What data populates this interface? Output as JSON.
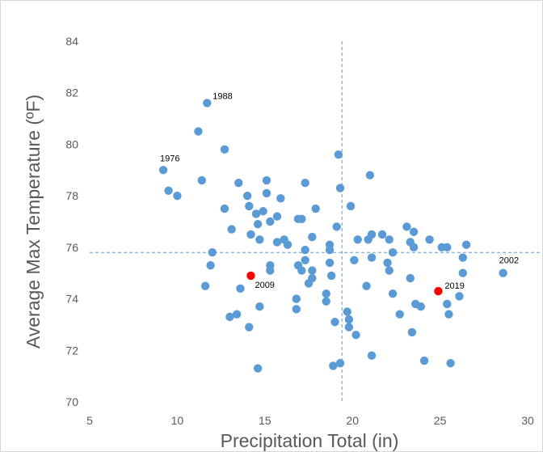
{
  "chart_data": {
    "type": "scatter",
    "xlabel": "Precipitation Total (in)",
    "ylabel": "Average Max Temperature (ºF)",
    "xlim": [
      5,
      30
    ],
    "ylim": [
      70,
      84
    ],
    "x_ticks": [
      5,
      10,
      15,
      20,
      25,
      30
    ],
    "y_ticks": [
      70,
      72,
      74,
      76,
      78,
      80,
      82,
      84
    ],
    "grid": false,
    "reference_lines": {
      "x": 19.4,
      "y": 75.8
    },
    "colors": {
      "points": "#5b9bd5",
      "highlight": "#ff0000",
      "reference_line": "#5b9bd5"
    },
    "series": [
      {
        "values": [
          [
            11.7,
            81.6
          ],
          [
            11.2,
            80.5
          ],
          [
            9.2,
            79.0
          ],
          [
            9.5,
            78.2
          ],
          [
            10.0,
            78.0
          ],
          [
            12.7,
            79.8
          ],
          [
            11.4,
            78.6
          ],
          [
            12.7,
            77.5
          ],
          [
            13.1,
            76.7
          ],
          [
            12.0,
            75.8
          ],
          [
            11.9,
            75.3
          ],
          [
            11.6,
            74.5
          ],
          [
            13.6,
            74.4
          ],
          [
            13.4,
            73.4
          ],
          [
            13.0,
            73.3
          ],
          [
            14.1,
            72.9
          ],
          [
            14.6,
            71.3
          ],
          [
            14.7,
            73.7
          ],
          [
            14.0,
            78.0
          ],
          [
            13.5,
            78.5
          ],
          [
            14.1,
            77.6
          ],
          [
            14.5,
            77.3
          ],
          [
            14.9,
            77.4
          ],
          [
            14.6,
            76.9
          ],
          [
            15.1,
            78.1
          ],
          [
            15.1,
            78.6
          ],
          [
            15.9,
            77.9
          ],
          [
            15.7,
            77.2
          ],
          [
            15.3,
            77.0
          ],
          [
            14.2,
            76.5
          ],
          [
            14.7,
            76.3
          ],
          [
            15.7,
            76.2
          ],
          [
            16.1,
            76.3
          ],
          [
            16.3,
            76.1
          ],
          [
            15.3,
            75.3
          ],
          [
            15.3,
            75.1
          ],
          [
            17.3,
            78.5
          ],
          [
            16.9,
            77.1
          ],
          [
            17.1,
            77.1
          ],
          [
            17.9,
            77.5
          ],
          [
            17.7,
            76.4
          ],
          [
            17.3,
            75.9
          ],
          [
            16.9,
            75.3
          ],
          [
            17.1,
            75.1
          ],
          [
            17.3,
            75.5
          ],
          [
            17.7,
            75.1
          ],
          [
            17.5,
            74.6
          ],
          [
            17.7,
            74.8
          ],
          [
            16.8,
            74.0
          ],
          [
            16.8,
            73.6
          ],
          [
            19.2,
            79.6
          ],
          [
            19.3,
            78.3
          ],
          [
            18.7,
            76.1
          ],
          [
            18.7,
            75.9
          ],
          [
            18.7,
            75.4
          ],
          [
            18.8,
            74.9
          ],
          [
            18.5,
            74.2
          ],
          [
            18.5,
            73.9
          ],
          [
            19.1,
            76.8
          ],
          [
            19.9,
            77.6
          ],
          [
            21.0,
            78.8
          ],
          [
            19.0,
            73.1
          ],
          [
            19.7,
            73.5
          ],
          [
            19.8,
            73.2
          ],
          [
            19.8,
            72.9
          ],
          [
            20.2,
            72.6
          ],
          [
            18.9,
            71.4
          ],
          [
            19.3,
            71.5
          ],
          [
            21.1,
            71.8
          ],
          [
            20.3,
            76.3
          ],
          [
            20.9,
            76.3
          ],
          [
            21.1,
            76.5
          ],
          [
            21.7,
            76.5
          ],
          [
            22.1,
            76.3
          ],
          [
            20.1,
            75.5
          ],
          [
            21.1,
            75.6
          ],
          [
            22.0,
            75.4
          ],
          [
            22.3,
            75.8
          ],
          [
            22.1,
            75.1
          ],
          [
            20.8,
            74.5
          ],
          [
            22.3,
            74.2
          ],
          [
            22.7,
            73.4
          ],
          [
            23.1,
            76.8
          ],
          [
            23.5,
            76.6
          ],
          [
            23.3,
            76.2
          ],
          [
            23.5,
            76.0
          ],
          [
            24.4,
            76.3
          ],
          [
            25.1,
            76.0
          ],
          [
            25.4,
            76.0
          ],
          [
            26.5,
            76.1
          ],
          [
            26.3,
            75.6
          ],
          [
            26.3,
            75.0
          ],
          [
            23.3,
            74.8
          ],
          [
            23.6,
            73.8
          ],
          [
            23.9,
            73.7
          ],
          [
            25.4,
            73.8
          ],
          [
            25.5,
            73.4
          ],
          [
            26.1,
            74.1
          ],
          [
            23.4,
            72.7
          ],
          [
            24.1,
            71.6
          ],
          [
            25.6,
            71.5
          ],
          [
            28.6,
            75.0
          ]
        ]
      },
      {
        "values": [
          [
            14.2,
            74.9
          ],
          [
            24.9,
            74.3
          ]
        ]
      }
    ],
    "annotations": [
      {
        "text": "1988",
        "x": 11.7,
        "y": 81.6
      },
      {
        "text": "1976",
        "x": 9.2,
        "y": 79.0
      },
      {
        "text": "2009",
        "x": 14.2,
        "y": 74.9
      },
      {
        "text": "2019",
        "x": 24.9,
        "y": 74.3
      },
      {
        "text": "2002",
        "x": 28.6,
        "y": 75.0
      }
    ]
  }
}
